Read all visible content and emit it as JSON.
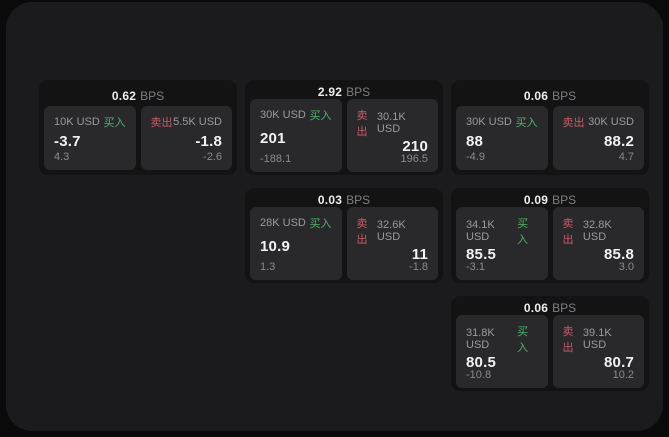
{
  "colors": {
    "buy_green": "#4db36a",
    "sell_red": "#ca5a68",
    "panel_bg": "#1b1b1d",
    "card_bg": "#131314",
    "tile_bg": "#29292b"
  },
  "labels": {
    "bps_unit": "BPS",
    "buy": "买入",
    "sell": "卖出"
  },
  "cards": [
    {
      "bps": "0.62",
      "col": 1,
      "row": 1,
      "buy": {
        "amount": "10K USD",
        "price": "-3.7",
        "delta": "4.3"
      },
      "sell": {
        "amount": "5.5K USD",
        "price": "-1.8",
        "delta": "-2.6"
      }
    },
    {
      "bps": "2.92",
      "col": 2,
      "row": 1,
      "buy": {
        "amount": "30K USD",
        "price": "201",
        "delta": "-188.1"
      },
      "sell": {
        "amount": "30.1K USD",
        "price": "210",
        "delta": "196.5"
      }
    },
    {
      "bps": "0.06",
      "col": 3,
      "row": 1,
      "buy": {
        "amount": "30K USD",
        "price": "88",
        "delta": "-4.9"
      },
      "sell": {
        "amount": "30K USD",
        "price": "88.2",
        "delta": "4.7"
      }
    },
    {
      "bps": "0.03",
      "col": 2,
      "row": 2,
      "buy": {
        "amount": "28K USD",
        "price": "10.9",
        "delta": "1.3"
      },
      "sell": {
        "amount": "32.6K USD",
        "price": "11",
        "delta": "-1.8"
      }
    },
    {
      "bps": "0.09",
      "col": 3,
      "row": 2,
      "buy": {
        "amount": "34.1K USD",
        "price": "85.5",
        "delta": "-3.1"
      },
      "sell": {
        "amount": "32.8K USD",
        "price": "85.8",
        "delta": "3.0"
      }
    },
    {
      "bps": "0.06",
      "col": 3,
      "row": 3,
      "buy": {
        "amount": "31.8K USD",
        "price": "80.5",
        "delta": "-10.8"
      },
      "sell": {
        "amount": "39.1K USD",
        "price": "80.7",
        "delta": "10.2"
      }
    }
  ]
}
